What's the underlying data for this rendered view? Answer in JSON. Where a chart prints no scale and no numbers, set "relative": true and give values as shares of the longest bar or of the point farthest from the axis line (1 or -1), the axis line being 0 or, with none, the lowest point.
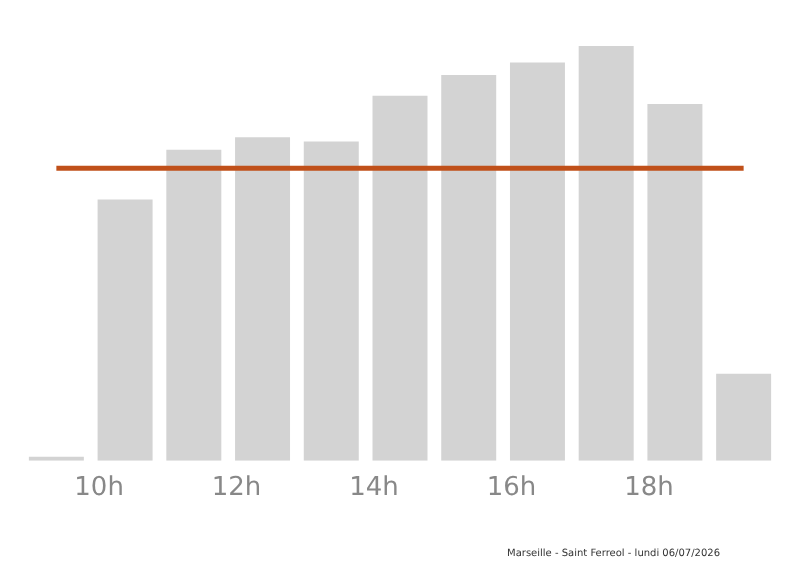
{
  "chart_data": {
    "type": "bar",
    "relative": true,
    "categories": [
      null,
      "10h",
      null,
      "12h",
      null,
      "14h",
      null,
      "16h",
      null,
      "18h",
      null
    ],
    "values": [
      0.01,
      0.63,
      0.75,
      0.78,
      0.77,
      0.88,
      0.93,
      0.96,
      1,
      0.86,
      0.21
    ],
    "color": "#d3d3d3",
    "ref_lines": [
      {
        "axis": "y",
        "value": 0.705,
        "color": "#c0501a"
      }
    ],
    "annotations": [
      "Marseille - Saint Ferreol - lundi 06/07/2026"
    ],
    "grid": false,
    "legend": false
  }
}
